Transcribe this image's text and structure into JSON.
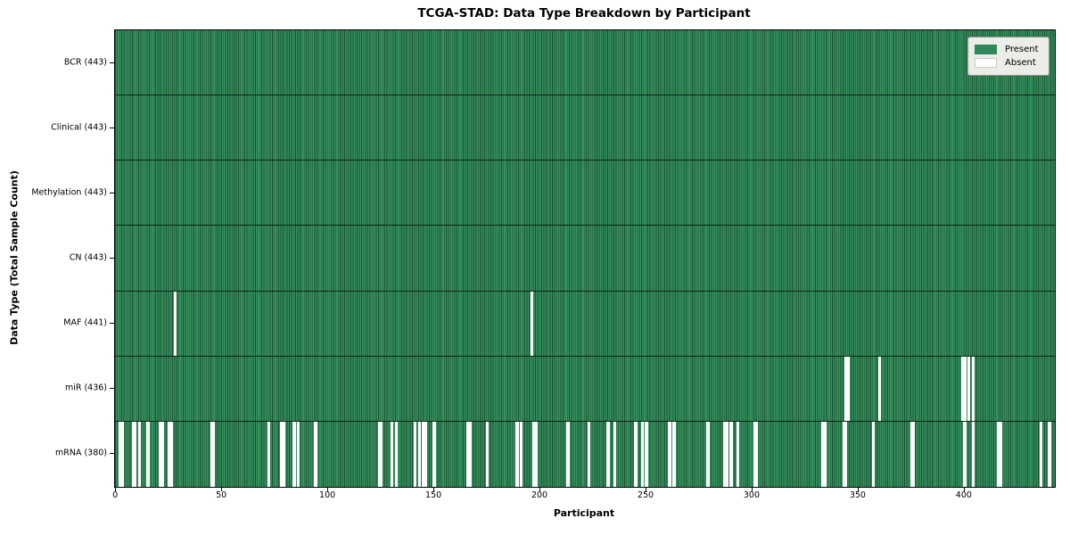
{
  "chart_data": {
    "type": "heatmap",
    "title": "TCGA-STAD: Data Type Breakdown by Participant",
    "xlabel": "Participant",
    "ylabel": "Data Type (Total Sample Count)",
    "n_participants": 443,
    "x_range": [
      -0.5,
      442.5
    ],
    "x_ticks": [
      0,
      50,
      100,
      150,
      200,
      250,
      300,
      350,
      400
    ],
    "grid": false,
    "legend_position": "upper right",
    "legend": [
      {
        "label": "Present",
        "color": "#2e8757"
      },
      {
        "label": "Absent",
        "color": "#ffffff"
      }
    ],
    "rows": [
      {
        "label": "BCR (443)",
        "present_count": 443,
        "absent_participants": []
      },
      {
        "label": "Clinical (443)",
        "present_count": 443,
        "absent_participants": []
      },
      {
        "label": "Methylation (443)",
        "present_count": 443,
        "absent_participants": []
      },
      {
        "label": "CN (443)",
        "present_count": 443,
        "absent_participants": []
      },
      {
        "label": "MAF (441)",
        "present_count": 441,
        "absent_participants": [
          28,
          196
        ]
      },
      {
        "label": "miR (436)",
        "present_count": 436,
        "absent_participants": [
          344,
          345,
          360,
          399,
          400,
          402,
          404
        ]
      },
      {
        "label": "mRNA (380)",
        "present_count": 380,
        "absent_participants": [
          2,
          3,
          8,
          9,
          11,
          15,
          21,
          22,
          25,
          26,
          45,
          46,
          72,
          78,
          79,
          84,
          86,
          94,
          124,
          125,
          130,
          132,
          141,
          143,
          145,
          146,
          150,
          166,
          167,
          175,
          189,
          191,
          197,
          198,
          213,
          223,
          232,
          235,
          245,
          248,
          250,
          261,
          263,
          279,
          287,
          288,
          290,
          293,
          301,
          302,
          333,
          334,
          343,
          344,
          357,
          375,
          376,
          400,
          404,
          416,
          417,
          436,
          440
        ]
      }
    ],
    "colors": {
      "present_fill": "#37915f",
      "cell_edge": "#17512f",
      "row_divider": "#0c2416",
      "plot_border": "#000000",
      "absent_fill": "#ffffff",
      "legend_bg": "#eaede8",
      "legend_border": "#8f8f8f"
    }
  }
}
